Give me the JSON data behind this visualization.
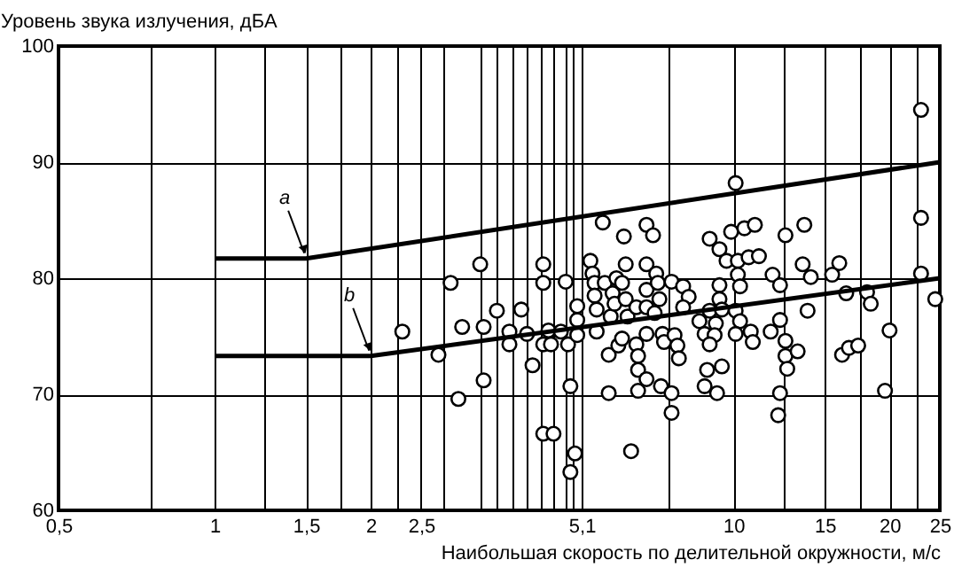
{
  "chart_data": {
    "type": "scatter",
    "xlabel": "Наибольшая скорость по делительной окружности, м/с",
    "ylabel": "Уровень звука излучения, дБA",
    "annotations": [
      {
        "text": "a",
        "x": 1.5,
        "y": 81.7
      },
      {
        "text": "b",
        "x": 2,
        "y": 73.3
      }
    ],
    "log": "x",
    "grid": true,
    "marker": "circle",
    "line_style": "solid",
    "xlim": [
      0.5,
      25
    ],
    "ylim": [
      60,
      100
    ],
    "xticks": [
      {
        "value": 0.5,
        "label": "0,5"
      },
      {
        "value": 0.75,
        "label": null
      },
      1,
      {
        "value": 1.25,
        "label": null
      },
      {
        "value": 1.5,
        "label": "1,5"
      },
      {
        "value": 1.75,
        "label": null
      },
      2,
      {
        "value": 2.25,
        "label": null
      },
      {
        "value": 2.5,
        "label": "2,5"
      },
      {
        "value": 2.75,
        "label": null
      },
      {
        "value": 3.25,
        "label": null
      },
      {
        "value": 3.5,
        "label": null
      },
      {
        "value": 3.75,
        "label": null
      },
      {
        "value": 4,
        "label": null
      },
      {
        "value": 4.25,
        "label": null
      },
      {
        "value": 4.5,
        "label": null
      },
      {
        "value": 4.75,
        "label": null
      },
      {
        "value": 4.9,
        "label": null
      },
      {
        "value": 5.1,
        "label": "5,1"
      },
      {
        "value": 7.5,
        "label": null
      },
      10,
      {
        "value": 12.5,
        "label": null
      },
      15,
      {
        "value": 17.5,
        "label": null
      },
      20,
      {
        "value": 22.5,
        "label": null
      },
      25
    ],
    "yticks": [
      60,
      70,
      80,
      90,
      100
    ],
    "series": [
      {
        "color": "#000000",
        "x": [
          2.3,
          2.7,
          2.85,
          2.95,
          3.0,
          3.25,
          3.3,
          3.3,
          3.5,
          3.7,
          3.7,
          3.9,
          4.0,
          4.1,
          4.3,
          4.3,
          4.3,
          4.3,
          4.4,
          4.45,
          4.5,
          4.65,
          4.75,
          4.8,
          4.85,
          4.95,
          4.85,
          5.0,
          5.0,
          5.0,
          5.3,
          5.35,
          5.4,
          5.4,
          5.45,
          5.45,
          5.6,
          5.65,
          5.75,
          5.75,
          5.8,
          5.85,
          5.9,
          5.95,
          6.0,
          6.1,
          6.15,
          6.1,
          6.2,
          6.2,
          6.35,
          6.25,
          6.5,
          6.5,
          6.55,
          6.55,
          6.55,
          6.8,
          6.8,
          6.8,
          6.8,
          6.8,
          6.8,
          7.0,
          7.1,
          7.15,
          7.2,
          7.25,
          7.3,
          7.35,
          23,
          10.1,
          23,
          9.9,
          10.5,
          11,
          13.7,
          9.0,
          12.6,
          9.4,
          9.7,
          10.2,
          10.7,
          11.2,
          13.6,
          16,
          10.2,
          11.9,
          14.1,
          15.5,
          23,
          7.6,
          8.0,
          9.4,
          10.3,
          12.3,
          16.5,
          18.1,
          8.2,
          9.4,
          18.4,
          24.5,
          8.0,
          9.0,
          10.1,
          9.5,
          13.9,
          8.6,
          9.25,
          10.3,
          12.3,
          7.05,
          8.8,
          9.2,
          10.1,
          10.8,
          11.8,
          7.7,
          9.0,
          10.9,
          12.6,
          20,
          7.8,
          7.85,
          12.6,
          13.3,
          16.2,
          16.7,
          17.4,
          12.7,
          9.5,
          8.9,
          8.8,
          9.3,
          7.6,
          12.3,
          19.6,
          7.6,
          12.2
        ],
        "values": [
          75.4,
          73.4,
          79.6,
          69.6,
          75.8,
          81.2,
          75.8,
          71.2,
          77.2,
          75.4,
          74.3,
          77.3,
          75.2,
          72.5,
          74.3,
          66.6,
          81.2,
          79.6,
          75.5,
          74.3,
          66.6,
          75.4,
          79.7,
          74.3,
          70.7,
          64.9,
          63.3,
          76.4,
          77.6,
          75.1,
          81.5,
          80.4,
          79.6,
          78.5,
          77.3,
          75.4,
          84.8,
          79.6,
          73.4,
          70.1,
          76.7,
          78.7,
          77.8,
          80,
          74.2,
          74.8,
          83.6,
          79.6,
          81.2,
          78.2,
          65.1,
          76.7,
          77.5,
          74.3,
          73.3,
          72.1,
          70.3,
          84.6,
          81.2,
          79,
          75.2,
          71.3,
          77.5,
          83.7,
          80.4,
          79.6,
          78.2,
          70.7,
          75.2,
          74.5,
          94.5,
          88.2,
          85.2,
          84,
          84.3,
          84.6,
          84.6,
          83.4,
          83.7,
          82.5,
          81.5,
          81.5,
          81.8,
          81.9,
          81.2,
          81.3,
          80.3,
          80.3,
          80.1,
          80.3,
          80.4,
          79.7,
          79.3,
          79.4,
          79.3,
          79.4,
          78.7,
          78.8,
          78.4,
          78.2,
          77.8,
          78.2,
          77.5,
          77.2,
          77.2,
          77.3,
          77.2,
          76.3,
          76.1,
          76.3,
          76.4,
          77,
          75.2,
          75.1,
          75.2,
          75.4,
          75.4,
          75.1,
          74.3,
          74.5,
          74.6,
          75.5,
          74.2,
          73.1,
          73.3,
          73.7,
          73.4,
          74,
          74.2,
          72.2,
          72.4,
          72.1,
          70.7,
          70.1,
          70.1,
          70.1,
          70.3,
          68.4,
          68.2
        ]
      },
      {
        "type": "line",
        "marker": "none",
        "color": "#000000",
        "x": [
          1,
          1.5,
          25
        ],
        "values": [
          81.7,
          81.7,
          90
        ]
      },
      {
        "type": "line",
        "marker": "none",
        "color": "#000000",
        "x": [
          1,
          2,
          25
        ],
        "values": [
          73.3,
          73.3,
          80
        ]
      }
    ]
  }
}
